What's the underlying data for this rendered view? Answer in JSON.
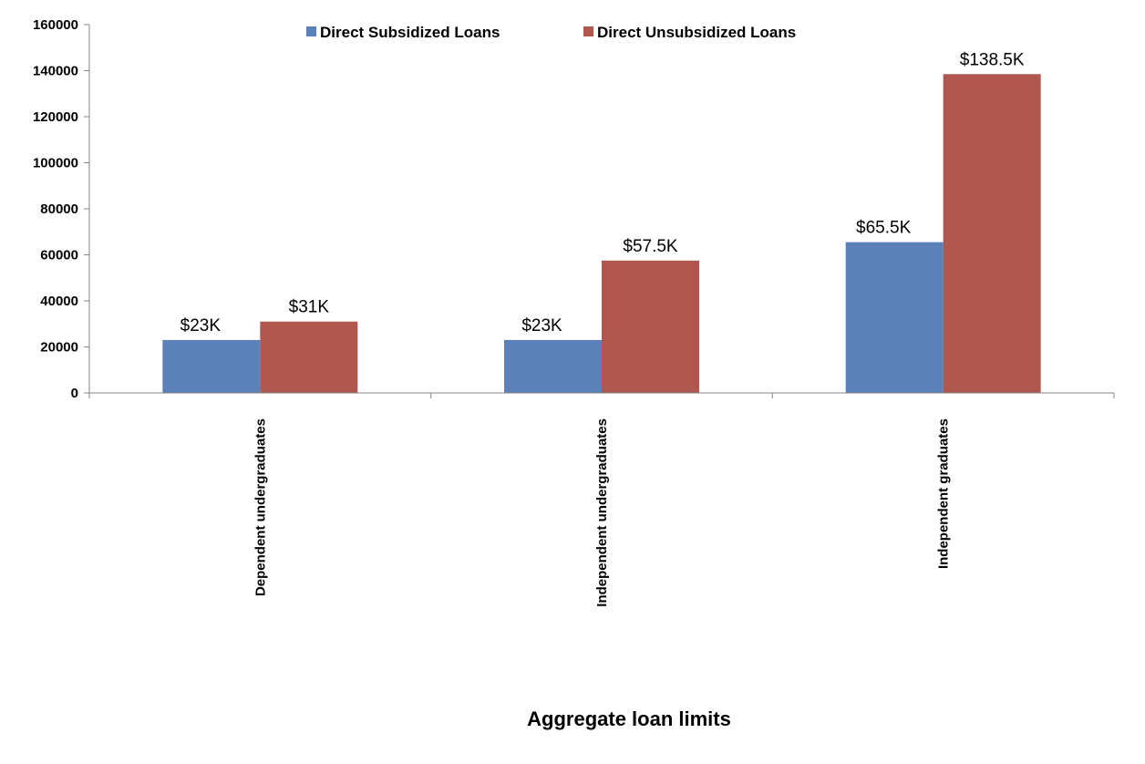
{
  "chart_data": {
    "type": "bar",
    "categories": [
      "Dependent undergraduates",
      "Independent undergraduates",
      "Independent graduates"
    ],
    "series": [
      {
        "name": "Direct Subsidized Loans",
        "values": [
          23000,
          23000,
          65500
        ],
        "labels": [
          "$23K",
          "$23K",
          "$65.5K"
        ],
        "color": "#5b81b8"
      },
      {
        "name": "Direct Unsubsidized Loans",
        "values": [
          31000,
          57500,
          138500
        ],
        "labels": [
          "$31K",
          "$57.5K",
          "$138.5K"
        ],
        "color": "#b0574f"
      }
    ],
    "yticks": [
      "0",
      "20000",
      "40000",
      "60000",
      "80000",
      "100000",
      "120000",
      "140000",
      "160000"
    ],
    "ylim": [
      0,
      160000
    ],
    "xlabel": "Aggregate loan limits",
    "ylabel": "",
    "title": "",
    "legend_position": "top-center",
    "grid": false
  }
}
